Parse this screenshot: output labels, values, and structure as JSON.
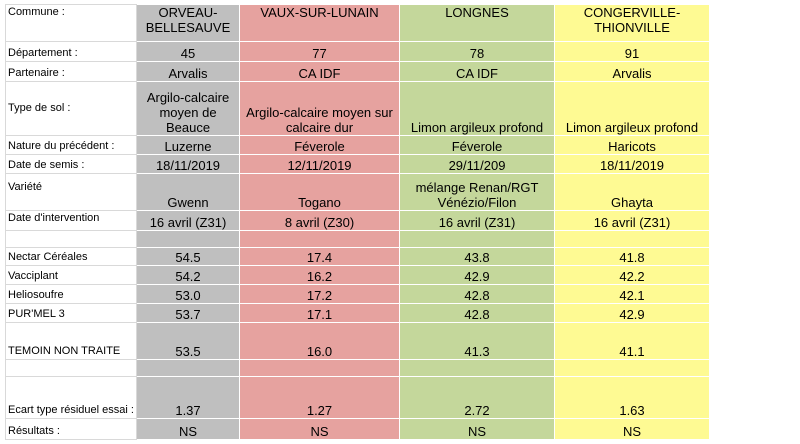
{
  "labels": {
    "commune": "Commune :",
    "departement": "Département :",
    "partenaire": "Partenaire :",
    "type_sol": "Type de sol :",
    "precedent": "Nature du précédent :",
    "date_semis": "Date de semis :",
    "variete": "Variété",
    "date_intervention": "Date d'intervention",
    "nectar": "Nectar Céréales",
    "vacciplant": "Vacciplant",
    "heliosoufre": "Heliosoufre",
    "purmel": "PUR'MEL 3",
    "temoin": "TEMOIN NON TRAITE",
    "ecart": "Ecart type résiduel essai :",
    "resultats": "Résultats :"
  },
  "sites": [
    {
      "color": "#bfbfbf",
      "commune": "ORVEAU-BELLESAUVE",
      "departement": "45",
      "partenaire": "Arvalis",
      "type_sol": "Argilo-calcaire moyen de Beauce",
      "precedent": "Luzerne",
      "date_semis": "18/11/2019",
      "variete": "Gwenn",
      "date_intervention": "16 avril  (Z31)",
      "nectar": "54.5",
      "vacciplant": "54.2",
      "heliosoufre": "53.0",
      "purmel": "53.7",
      "temoin": "53.5",
      "ecart": "1.37",
      "resultats": "NS"
    },
    {
      "color": "#e6a29f",
      "commune": "VAUX-SUR-LUNAIN",
      "departement": "77",
      "partenaire": "CA IDF",
      "type_sol": "Argilo-calcaire moyen sur calcaire dur",
      "precedent": "Féverole",
      "date_semis": "12/11/2019",
      "variete": "Togano",
      "date_intervention": "8 avril (Z30)",
      "nectar": "17.4",
      "vacciplant": "16.2",
      "heliosoufre": "17.2",
      "purmel": "17.1",
      "temoin": "16.0",
      "ecart": "1.27",
      "resultats": "NS"
    },
    {
      "color": "#c4d79b",
      "commune": "LONGNES",
      "departement": "78",
      "partenaire": "CA IDF",
      "type_sol": "Limon argileux profond",
      "precedent": "Féverole",
      "date_semis": "29/11/209",
      "variete": "mélange Renan/RGT Vénézio/Filon",
      "date_intervention": "16 avril (Z31)",
      "nectar": "43.8",
      "vacciplant": "42.9",
      "heliosoufre": "42.8",
      "purmel": "42.8",
      "temoin": "41.3",
      "ecart": "2.72",
      "resultats": "NS"
    },
    {
      "color": "#fefa93",
      "commune": "CONGERVILLE-THIONVILLE",
      "departement": "91",
      "partenaire": "Arvalis",
      "type_sol": "Limon argileux profond",
      "precedent": "Haricots",
      "date_semis": "18/11/2019",
      "variete": "Ghayta",
      "date_intervention": "16 avril (Z31)",
      "nectar": "41.8",
      "vacciplant": "42.2",
      "heliosoufre": "42.1",
      "purmel": "42.9",
      "temoin": "41.1",
      "ecart": "1.63",
      "resultats": "NS"
    }
  ]
}
